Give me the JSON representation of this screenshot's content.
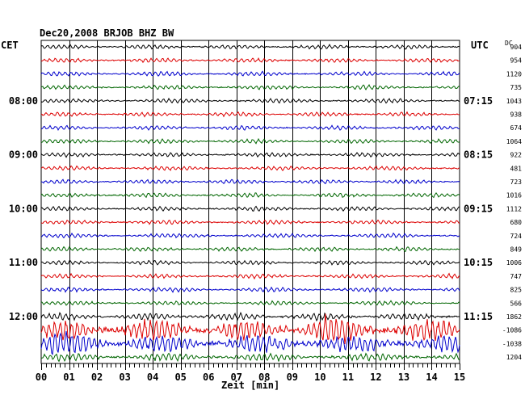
{
  "header": {
    "title": "Dec20,2008   BRJOB BHZ BW",
    "tz_left": "CET",
    "tz_right": "UTC",
    "dc_label": "DC"
  },
  "chart_data": {
    "type": "line",
    "xlabel": "Zeit [min]",
    "xlim": [
      0,
      15
    ],
    "x_ticks": [
      "00",
      "01",
      "02",
      "03",
      "04",
      "05",
      "06",
      "07",
      "08",
      "09",
      "10",
      "11",
      "12",
      "13",
      "14",
      "15"
    ],
    "grid": true,
    "trace_colors": [
      "#000000",
      "#dd0000",
      "#0000cc",
      "#006600"
    ],
    "left_time_labels": [
      {
        "label": "08:00",
        "row": 4
      },
      {
        "label": "09:00",
        "row": 8
      },
      {
        "label": "10:00",
        "row": 12
      },
      {
        "label": "11:00",
        "row": 16
      },
      {
        "label": "12:00",
        "row": 20
      }
    ],
    "right_time_labels": [
      {
        "label": "07:15",
        "row": 4
      },
      {
        "label": "08:15",
        "row": 8
      },
      {
        "label": "09:15",
        "row": 12
      },
      {
        "label": "10:15",
        "row": 16
      },
      {
        "label": "11:15",
        "row": 20
      }
    ],
    "dc_offsets": [
      904,
      954,
      1120,
      735,
      1043,
      938,
      674,
      1064,
      922,
      481,
      723,
      1016,
      1112,
      680,
      724,
      849,
      1006,
      747,
      825,
      566,
      1862,
      -1086,
      -1038,
      1204
    ]
  }
}
